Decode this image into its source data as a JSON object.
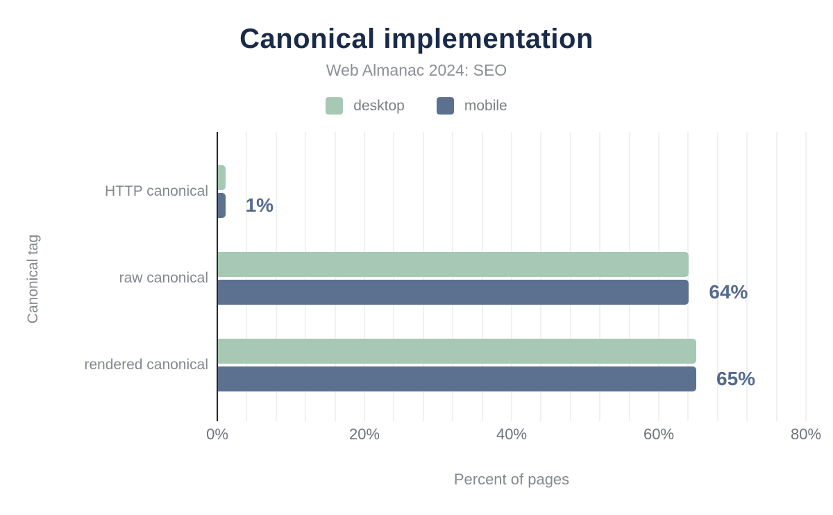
{
  "chart": {
    "title": "Canonical implementation",
    "subtitle": "Web Almanac 2024: SEO"
  },
  "chart_data": {
    "type": "bar",
    "orientation": "horizontal",
    "title": "Canonical implementation",
    "subtitle": "Web Almanac 2024: SEO",
    "xlabel": "Percent of pages",
    "ylabel": "Canonical tag",
    "categories": [
      "HTTP canonical",
      "raw canonical",
      "rendered canonical"
    ],
    "series": [
      {
        "name": "desktop",
        "color": "#a6c8b4",
        "values": [
          1,
          64,
          65
        ]
      },
      {
        "name": "mobile",
        "color": "#5c7090",
        "values": [
          1,
          64,
          65
        ]
      }
    ],
    "value_labels": [
      "1%",
      "64%",
      "65%"
    ],
    "x_ticks": [
      {
        "value": 0,
        "label": "0%"
      },
      {
        "value": 20,
        "label": "20%"
      },
      {
        "value": 40,
        "label": "40%"
      },
      {
        "value": 60,
        "label": "60%"
      },
      {
        "value": 80,
        "label": "80%"
      }
    ],
    "xlim": [
      0,
      84
    ],
    "grid": {
      "vertical_minor_step_percent": 4,
      "color": "#f1f1f1"
    },
    "legend_position": "top",
    "colors": {
      "title": "#1a2b49",
      "subtitle": "#8c9095",
      "legend_label": "#7b8086",
      "value_label": "#546a8e",
      "axis_line": "#24272b",
      "tick_label": "#6e737a",
      "category_label": "#84888f",
      "axis_title": "#84888f"
    }
  }
}
